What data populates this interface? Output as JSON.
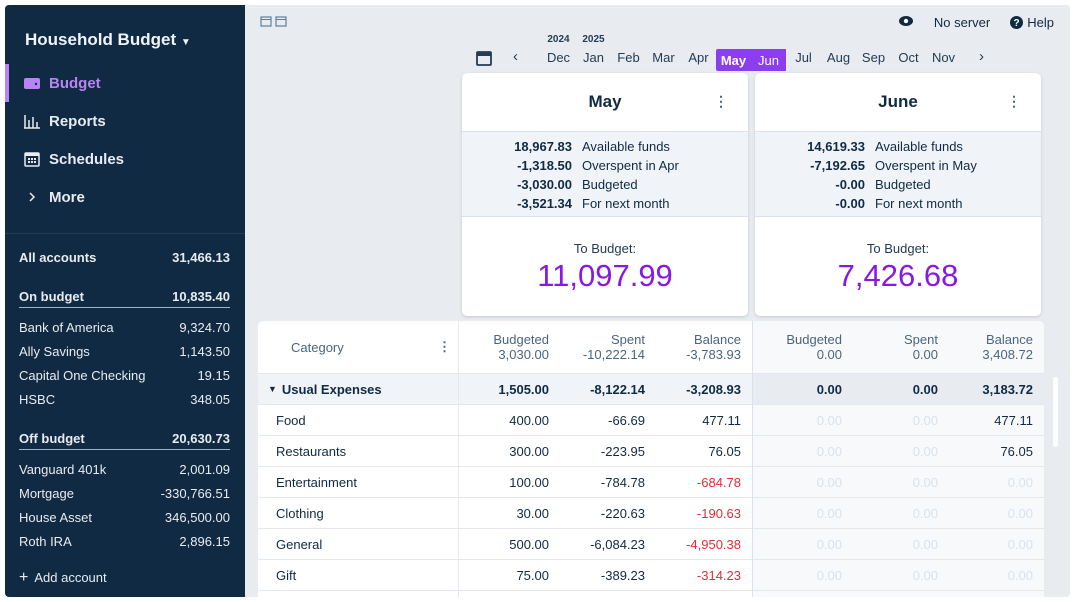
{
  "sidebar": {
    "title": "Household Budget",
    "nav": [
      {
        "label": "Budget",
        "icon": "wallet-icon"
      },
      {
        "label": "Reports",
        "icon": "chart-icon"
      },
      {
        "label": "Schedules",
        "icon": "calendar-icon"
      },
      {
        "label": "More",
        "icon": "chevron-right-icon"
      }
    ],
    "accounts": [
      {
        "name": "All accounts",
        "amount": "31,466.13",
        "head": true
      },
      {
        "name": "On budget",
        "amount": "10,835.40",
        "head": true,
        "under": true
      },
      {
        "name": "Bank of America",
        "amount": "9,324.70"
      },
      {
        "name": "Ally Savings",
        "amount": "1,143.50"
      },
      {
        "name": "Capital One Checking",
        "amount": "19.15"
      },
      {
        "name": "HSBC",
        "amount": "348.05"
      },
      {
        "name": "Off budget",
        "amount": "20,630.73",
        "head": true,
        "under": true
      },
      {
        "name": "Vanguard 401k",
        "amount": "2,001.09"
      },
      {
        "name": "Mortgage",
        "amount": "-330,766.51"
      },
      {
        "name": "House Asset",
        "amount": "346,500.00"
      },
      {
        "name": "Roth IRA",
        "amount": "2,896.15"
      }
    ],
    "add_account": "Add account"
  },
  "header": {
    "no_server": "No server",
    "help": "Help"
  },
  "months": [
    {
      "label": "Dec",
      "year": "2024"
    },
    {
      "label": "Jan",
      "year": "2025"
    },
    {
      "label": "Feb"
    },
    {
      "label": "Mar"
    },
    {
      "label": "Apr"
    },
    {
      "label": "May",
      "selected": true
    },
    {
      "label": "Jun",
      "selected": true
    },
    {
      "label": "Jul"
    },
    {
      "label": "Aug"
    },
    {
      "label": "Sep"
    },
    {
      "label": "Oct"
    },
    {
      "label": "Nov"
    }
  ],
  "cards": [
    {
      "title": "May",
      "summary": [
        [
          "18,967.83",
          "Available funds"
        ],
        [
          "-1,318.50",
          "Overspent in Apr"
        ],
        [
          "-3,030.00",
          "Budgeted"
        ],
        [
          "-3,521.34",
          "For next month"
        ]
      ],
      "to_budget_label": "To Budget:",
      "to_budget": "11,097.99"
    },
    {
      "title": "June",
      "summary": [
        [
          "14,619.33",
          "Available funds"
        ],
        [
          "-7,192.65",
          "Overspent in May"
        ],
        [
          "-0.00",
          "Budgeted"
        ],
        [
          "-0.00",
          "For next month"
        ]
      ],
      "to_budget_label": "To Budget:",
      "to_budget": "7,426.68"
    }
  ],
  "table": {
    "category_label": "Category",
    "header": [
      [
        "Budgeted",
        "3,030.00"
      ],
      [
        "Spent",
        "-10,222.14"
      ],
      [
        "Balance",
        "-3,783.93"
      ],
      [
        "Budgeted",
        "0.00"
      ],
      [
        "Spent",
        "0.00"
      ],
      [
        "Balance",
        "3,408.72"
      ]
    ],
    "rows": [
      {
        "name": "Usual Expenses",
        "group": true,
        "values": [
          "1,505.00",
          "-8,122.14",
          "-3,208.93",
          "0.00",
          "0.00",
          "3,183.72"
        ]
      },
      {
        "name": "Food",
        "values": [
          "400.00",
          "-66.69",
          "477.11",
          "0.00",
          "0.00",
          "477.11"
        ]
      },
      {
        "name": "Restaurants",
        "values": [
          "300.00",
          "-223.95",
          "76.05",
          "0.00",
          "0.00",
          "76.05"
        ]
      },
      {
        "name": "Entertainment",
        "values": [
          "100.00",
          "-784.78",
          "-684.78",
          "0.00",
          "0.00",
          "0.00"
        ]
      },
      {
        "name": "Clothing",
        "values": [
          "30.00",
          "-220.63",
          "-190.63",
          "0.00",
          "0.00",
          "0.00"
        ]
      },
      {
        "name": "General",
        "values": [
          "500.00",
          "-6,084.23",
          "-4,950.38",
          "0.00",
          "0.00",
          "0.00"
        ]
      },
      {
        "name": "Gift",
        "values": [
          "75.00",
          "-389.23",
          "-314.23",
          "0.00",
          "0.00",
          "0.00"
        ]
      }
    ]
  },
  "colors": {
    "sidebar": "#102a43",
    "accent": "#8719e0",
    "negative": "#e12d39"
  }
}
